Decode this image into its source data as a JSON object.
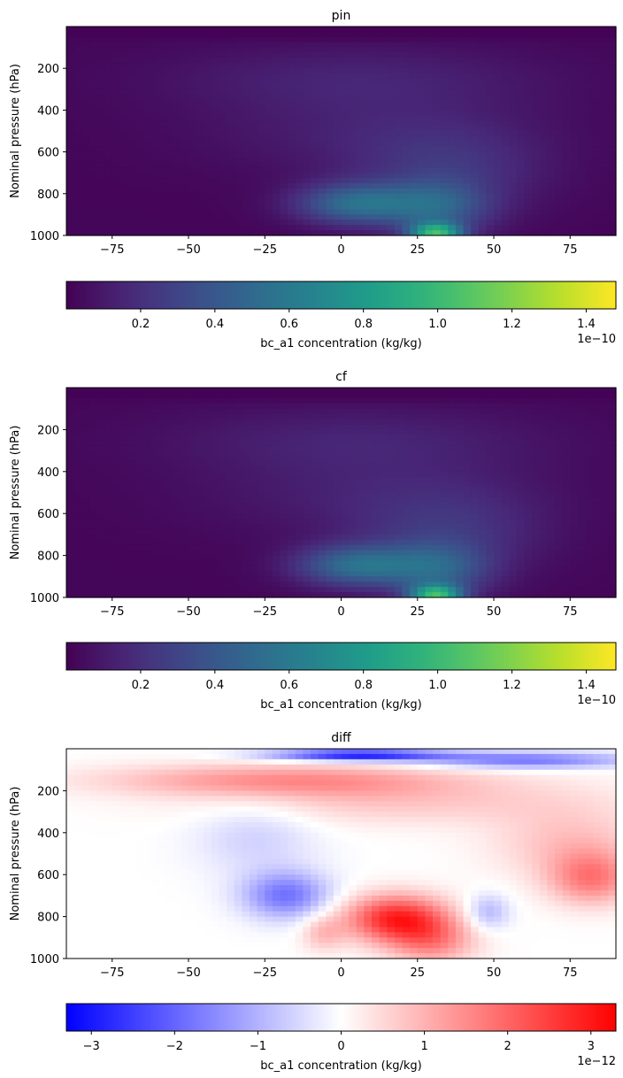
{
  "chart_data": [
    {
      "type": "heatmap",
      "title": "pin",
      "xlabel": "",
      "ylabel": "Nominal pressure (hPa)",
      "xlim": [
        -90,
        90
      ],
      "ylim": [
        1000,
        0
      ],
      "x_ticks": [
        -75,
        -50,
        -25,
        0,
        25,
        50,
        75
      ],
      "y_ticks": [
        200,
        400,
        600,
        800,
        1000
      ],
      "colormap": "viridis",
      "field": "concentration",
      "colorbar": {
        "label": "bc_a1 concentration (kg/kg)",
        "range": [
          0.0,
          1.48
        ],
        "ticks": [
          0.2,
          0.4,
          0.6,
          0.8,
          1.0,
          1.2,
          1.4
        ],
        "tick_labels": [
          "0.2",
          "0.4",
          "0.6",
          "0.8",
          "1.0",
          "1.2",
          "1.4"
        ],
        "offset_text": "1e−10",
        "orientation": "horizontal"
      }
    },
    {
      "type": "heatmap",
      "title": "cf",
      "xlabel": "",
      "ylabel": "Nominal pressure (hPa)",
      "xlim": [
        -90,
        90
      ],
      "ylim": [
        1000,
        0
      ],
      "x_ticks": [
        -75,
        -50,
        -25,
        0,
        25,
        50,
        75
      ],
      "y_ticks": [
        200,
        400,
        600,
        800,
        1000
      ],
      "colormap": "viridis",
      "field": "concentration",
      "colorbar": {
        "label": "bc_a1 concentration (kg/kg)",
        "range": [
          0.0,
          1.48
        ],
        "ticks": [
          0.2,
          0.4,
          0.6,
          0.8,
          1.0,
          1.2,
          1.4
        ],
        "tick_labels": [
          "0.2",
          "0.4",
          "0.6",
          "0.8",
          "1.0",
          "1.2",
          "1.4"
        ],
        "offset_text": "1e−10",
        "orientation": "horizontal"
      }
    },
    {
      "type": "heatmap",
      "title": "diff",
      "xlabel": "",
      "ylabel": "Nominal pressure (hPa)",
      "xlim": [
        -90,
        90
      ],
      "ylim": [
        1000,
        0
      ],
      "x_ticks": [
        -75,
        -50,
        -25,
        0,
        25,
        50,
        75
      ],
      "y_ticks": [
        200,
        400,
        600,
        800,
        1000
      ],
      "colormap": "bwr",
      "field": "difference",
      "colorbar": {
        "label": "bc_a1 concentration (kg/kg)",
        "range": [
          -3.3,
          3.3
        ],
        "ticks": [
          -3,
          -2,
          -1,
          0,
          1,
          2,
          3
        ],
        "tick_labels": [
          "−3",
          "−2",
          "−1",
          "0",
          "1",
          "2",
          "3"
        ],
        "offset_text": "1e−12",
        "orientation": "horizontal"
      }
    }
  ]
}
